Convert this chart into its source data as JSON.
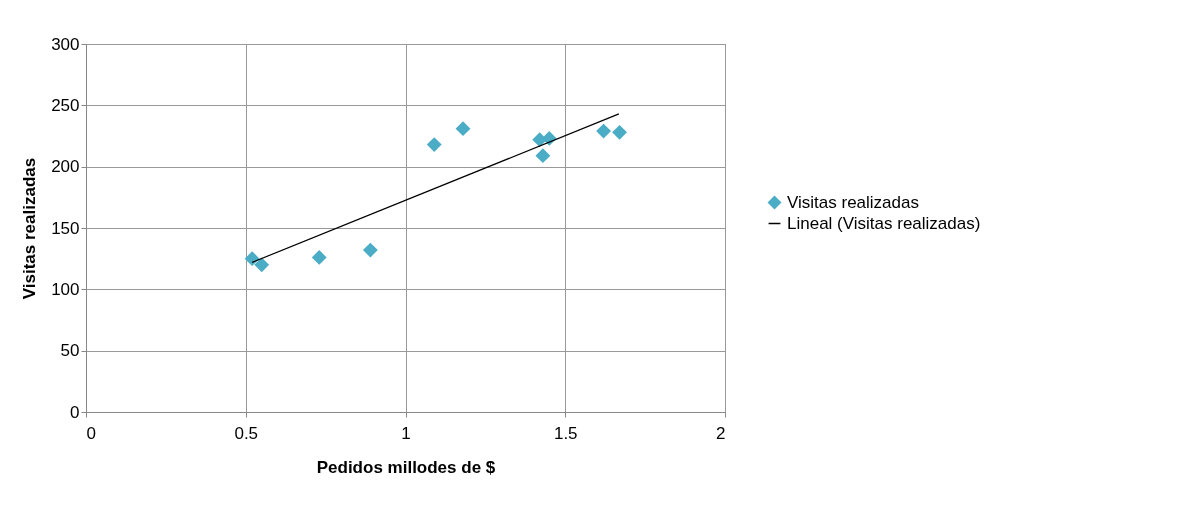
{
  "chart_data": {
    "type": "scatter",
    "xlabel": "Pedidos millodes de $",
    "ylabel": "Visitas realizadas",
    "xlim": [
      0,
      2
    ],
    "xticks": [
      0,
      0.5,
      1,
      1.5,
      2
    ],
    "ylim": [
      0,
      300
    ],
    "yticks": [
      0,
      50,
      100,
      150,
      200,
      250,
      300
    ],
    "grid": true,
    "legend": "right",
    "series": [
      {
        "name": "Visitas realizadas",
        "color": "#4bacc6",
        "marker": "diamond",
        "x": [
          0.52,
          0.55,
          0.73,
          0.89,
          1.09,
          1.18,
          1.42,
          1.43,
          1.45,
          1.62,
          1.67
        ],
        "values": [
          125,
          120,
          126,
          132,
          218,
          231,
          222,
          209,
          223,
          229,
          228
        ]
      },
      {
        "name": "Lineal (Visitas realizadas)",
        "type": "line",
        "color": "#000000",
        "x": [
          0.52,
          1.668
        ],
        "values": [
          122,
          243
        ]
      }
    ]
  }
}
